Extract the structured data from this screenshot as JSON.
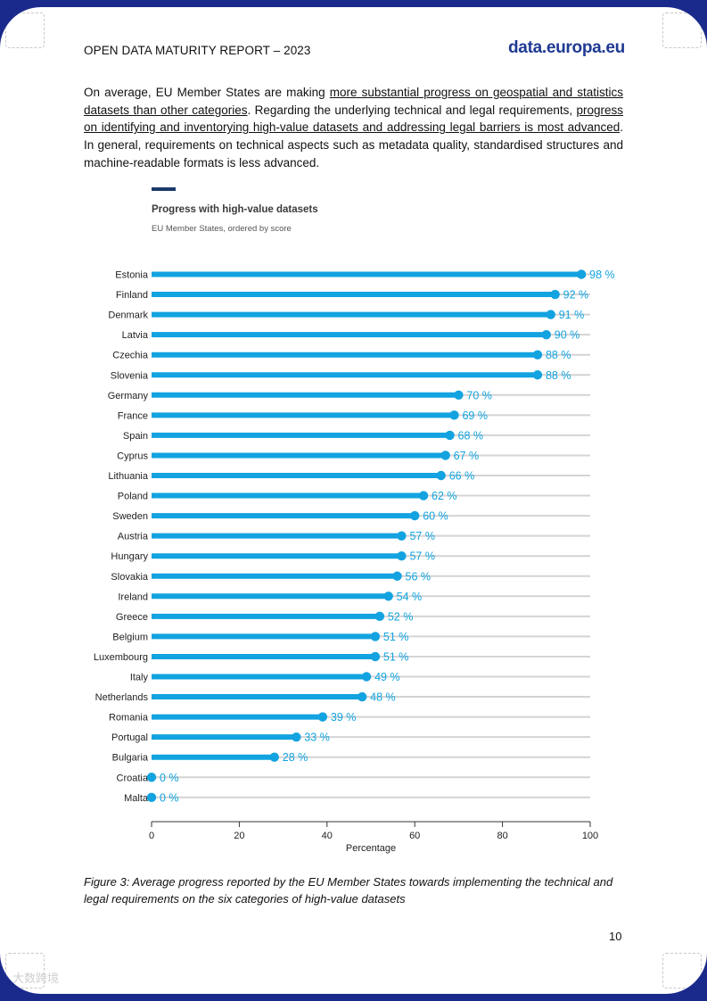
{
  "header": {
    "title": "OPEN DATA MATURITY REPORT – 2023",
    "logo": "data.europa.eu"
  },
  "intro": {
    "p1": "On average, EU Member States are making ",
    "u1": "more substantial progress on geospatial and statistics datasets than other categories",
    "p2": ". Regarding the underlying technical and legal requirements, ",
    "u2": "progress on identifying and inventorying high-value datasets and addressing legal barriers is most advanced",
    "p3": ". In general, requirements on technical aspects such as metadata quality, standardised structures and machine-readable formats is less advanced."
  },
  "chart_data": {
    "type": "bar",
    "title": "Progress with high-value datasets",
    "subtitle": "EU Member States, ordered by score",
    "xlabel": "Percentage",
    "ylabel": "",
    "xlim": [
      0,
      100
    ],
    "xticks": [
      0,
      20,
      40,
      60,
      80,
      100
    ],
    "value_suffix": " %",
    "colors": {
      "bar": "#12a3e0",
      "track": "#d4d4d4",
      "label": "#12a3e0"
    },
    "categories": [
      "Estonia",
      "Finland",
      "Denmark",
      "Latvia",
      "Czechia",
      "Slovenia",
      "Germany",
      "France",
      "Spain",
      "Cyprus",
      "Lithuania",
      "Poland",
      "Sweden",
      "Austria",
      "Hungary",
      "Slovakia",
      "Ireland",
      "Greece",
      "Belgium",
      "Luxembourg",
      "Italy",
      "Netherlands",
      "Romania",
      "Portugal",
      "Bulgaria",
      "Croatia",
      "Malta"
    ],
    "values": [
      98,
      92,
      91,
      90,
      88,
      88,
      70,
      69,
      68,
      67,
      66,
      62,
      60,
      57,
      57,
      56,
      54,
      52,
      51,
      51,
      49,
      48,
      39,
      33,
      28,
      0,
      0
    ]
  },
  "caption": "Figure 3: Average progress reported by the EU Member States towards implementing the technical and legal requirements on the six categories of high-value datasets",
  "page_number": "10",
  "watermark": "大数跨境"
}
